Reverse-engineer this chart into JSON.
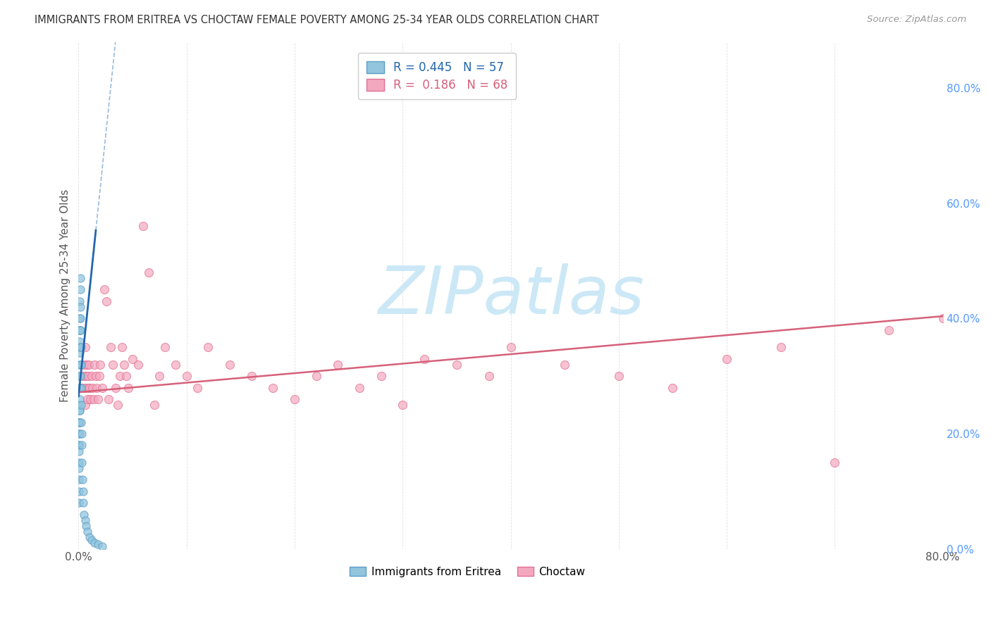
{
  "title": "IMMIGRANTS FROM ERITREA VS CHOCTAW FEMALE POVERTY AMONG 25-34 YEAR OLDS CORRELATION CHART",
  "source": "Source: ZipAtlas.com",
  "ylabel": "Female Poverty Among 25-34 Year Olds",
  "xlim": [
    0.0,
    0.8
  ],
  "ylim": [
    0.0,
    0.88
  ],
  "watermark": "ZIPatlas",
  "watermark_color": "#cce8f6",
  "series1_color": "#92c5de",
  "series2_color": "#f4a8c0",
  "series1_edge": "#5b9ec9",
  "series2_edge": "#e07090",
  "regression1_color": "#2166ac",
  "regression2_color": "#d6607a",
  "background_color": "#ffffff",
  "grid_color": "#cccccc",
  "title_color": "#333333",
  "axis_label_color": "#555555",
  "right_axis_color": "#5599ff",
  "eritrea_x": [
    0.0005,
    0.0005,
    0.0005,
    0.0005,
    0.0005,
    0.0006,
    0.0006,
    0.0006,
    0.0006,
    0.0007,
    0.0007,
    0.0007,
    0.0008,
    0.0008,
    0.0008,
    0.0009,
    0.0009,
    0.0009,
    0.001,
    0.001,
    0.001,
    0.001,
    0.0011,
    0.0011,
    0.0012,
    0.0012,
    0.0013,
    0.0013,
    0.0014,
    0.0014,
    0.0015,
    0.0015,
    0.0016,
    0.0017,
    0.0018,
    0.0019,
    0.002,
    0.0021,
    0.0022,
    0.0023,
    0.0025,
    0.0026,
    0.0028,
    0.003,
    0.0032,
    0.0035,
    0.004,
    0.0045,
    0.005,
    0.006,
    0.007,
    0.008,
    0.01,
    0.012,
    0.015,
    0.018,
    0.022
  ],
  "eritrea_y": [
    0.22,
    0.18,
    0.15,
    0.12,
    0.08,
    0.2,
    0.17,
    0.14,
    0.1,
    0.25,
    0.22,
    0.18,
    0.28,
    0.24,
    0.2,
    0.3,
    0.26,
    0.22,
    0.35,
    0.32,
    0.28,
    0.24,
    0.38,
    0.34,
    0.4,
    0.36,
    0.43,
    0.38,
    0.45,
    0.4,
    0.47,
    0.42,
    0.38,
    0.35,
    0.32,
    0.3,
    0.38,
    0.35,
    0.32,
    0.28,
    0.25,
    0.22,
    0.2,
    0.18,
    0.15,
    0.12,
    0.1,
    0.08,
    0.06,
    0.05,
    0.04,
    0.03,
    0.02,
    0.015,
    0.01,
    0.008,
    0.005
  ],
  "choctaw_x": [
    0.003,
    0.004,
    0.005,
    0.0055,
    0.006,
    0.0065,
    0.007,
    0.0075,
    0.008,
    0.0085,
    0.009,
    0.0095,
    0.01,
    0.011,
    0.012,
    0.013,
    0.014,
    0.015,
    0.016,
    0.017,
    0.018,
    0.019,
    0.02,
    0.022,
    0.024,
    0.026,
    0.028,
    0.03,
    0.032,
    0.034,
    0.036,
    0.038,
    0.04,
    0.042,
    0.044,
    0.046,
    0.05,
    0.055,
    0.06,
    0.065,
    0.07,
    0.075,
    0.08,
    0.09,
    0.1,
    0.11,
    0.12,
    0.14,
    0.16,
    0.18,
    0.2,
    0.22,
    0.24,
    0.26,
    0.28,
    0.3,
    0.32,
    0.35,
    0.38,
    0.4,
    0.45,
    0.5,
    0.55,
    0.6,
    0.65,
    0.7,
    0.75,
    0.8
  ],
  "choctaw_y": [
    0.28,
    0.3,
    0.32,
    0.28,
    0.35,
    0.25,
    0.3,
    0.32,
    0.28,
    0.26,
    0.3,
    0.32,
    0.28,
    0.26,
    0.3,
    0.28,
    0.26,
    0.32,
    0.3,
    0.28,
    0.26,
    0.3,
    0.32,
    0.28,
    0.45,
    0.43,
    0.26,
    0.35,
    0.32,
    0.28,
    0.25,
    0.3,
    0.35,
    0.32,
    0.3,
    0.28,
    0.33,
    0.32,
    0.56,
    0.48,
    0.25,
    0.3,
    0.35,
    0.32,
    0.3,
    0.28,
    0.35,
    0.32,
    0.3,
    0.28,
    0.26,
    0.3,
    0.32,
    0.28,
    0.3,
    0.25,
    0.33,
    0.32,
    0.3,
    0.35,
    0.32,
    0.3,
    0.28,
    0.33,
    0.35,
    0.15,
    0.38,
    0.4
  ]
}
